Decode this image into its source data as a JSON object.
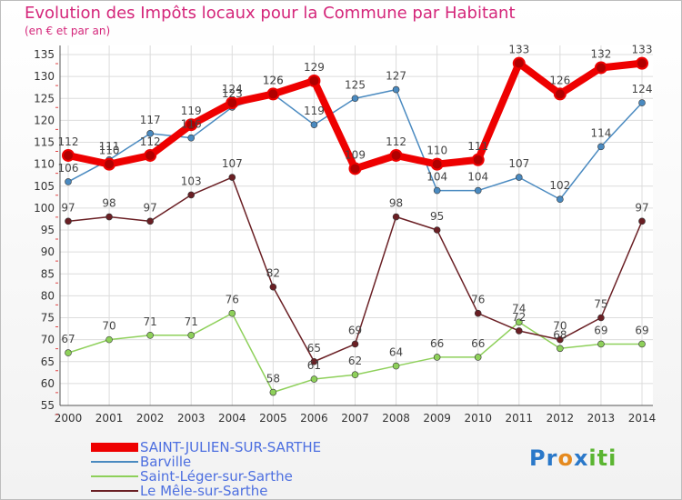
{
  "chart_data": {
    "type": "line",
    "title": "Evolution des Impôts locaux pour la Commune par Habitant",
    "subtitle": "(en € et par an)",
    "x": [
      "2000",
      "2001",
      "2002",
      "2003",
      "2004",
      "2005",
      "2006",
      "2007",
      "2008",
      "2009",
      "2010",
      "2011",
      "2012",
      "2013",
      "2014"
    ],
    "ylim": [
      55,
      135
    ],
    "yticks": [
      55,
      60,
      65,
      70,
      75,
      80,
      85,
      90,
      95,
      100,
      105,
      110,
      115,
      120,
      125,
      130,
      135
    ],
    "grid": true,
    "series": [
      {
        "name": "SAINT-JULIEN-SUR-SARTHE",
        "color": "#ee0000",
        "values": [
          112,
          110,
          112,
          119,
          124,
          126,
          129,
          109,
          112,
          110,
          111,
          133,
          126,
          132,
          133
        ]
      },
      {
        "name": "Barville",
        "color": "#4a8ac0",
        "values": [
          106,
          111,
          117,
          116,
          123,
          126,
          119,
          125,
          127,
          104,
          104,
          107,
          102,
          114,
          124
        ]
      },
      {
        "name": "Saint-Léger-sur-Sarthe",
        "color": "#8ed05a",
        "values": [
          67,
          70,
          71,
          71,
          76,
          58,
          61,
          62,
          64,
          66,
          66,
          74,
          68,
          69,
          69
        ]
      },
      {
        "name": "Le Mêle-sur-Sarthe",
        "color": "#6a1f24",
        "values": [
          97,
          98,
          97,
          103,
          107,
          82,
          65,
          69,
          98,
          95,
          76,
          72,
          70,
          75,
          97
        ]
      }
    ]
  },
  "brand": {
    "logo_text": "Proxiti",
    "letters": [
      "P",
      "r",
      "o",
      "x",
      "i",
      "t",
      "i"
    ],
    "letter_colors": [
      "#2a78c9",
      "#2a78c9",
      "#e58a1f",
      "#2a78c9",
      "#5bb531",
      "#5bb531",
      "#5bb531"
    ]
  }
}
